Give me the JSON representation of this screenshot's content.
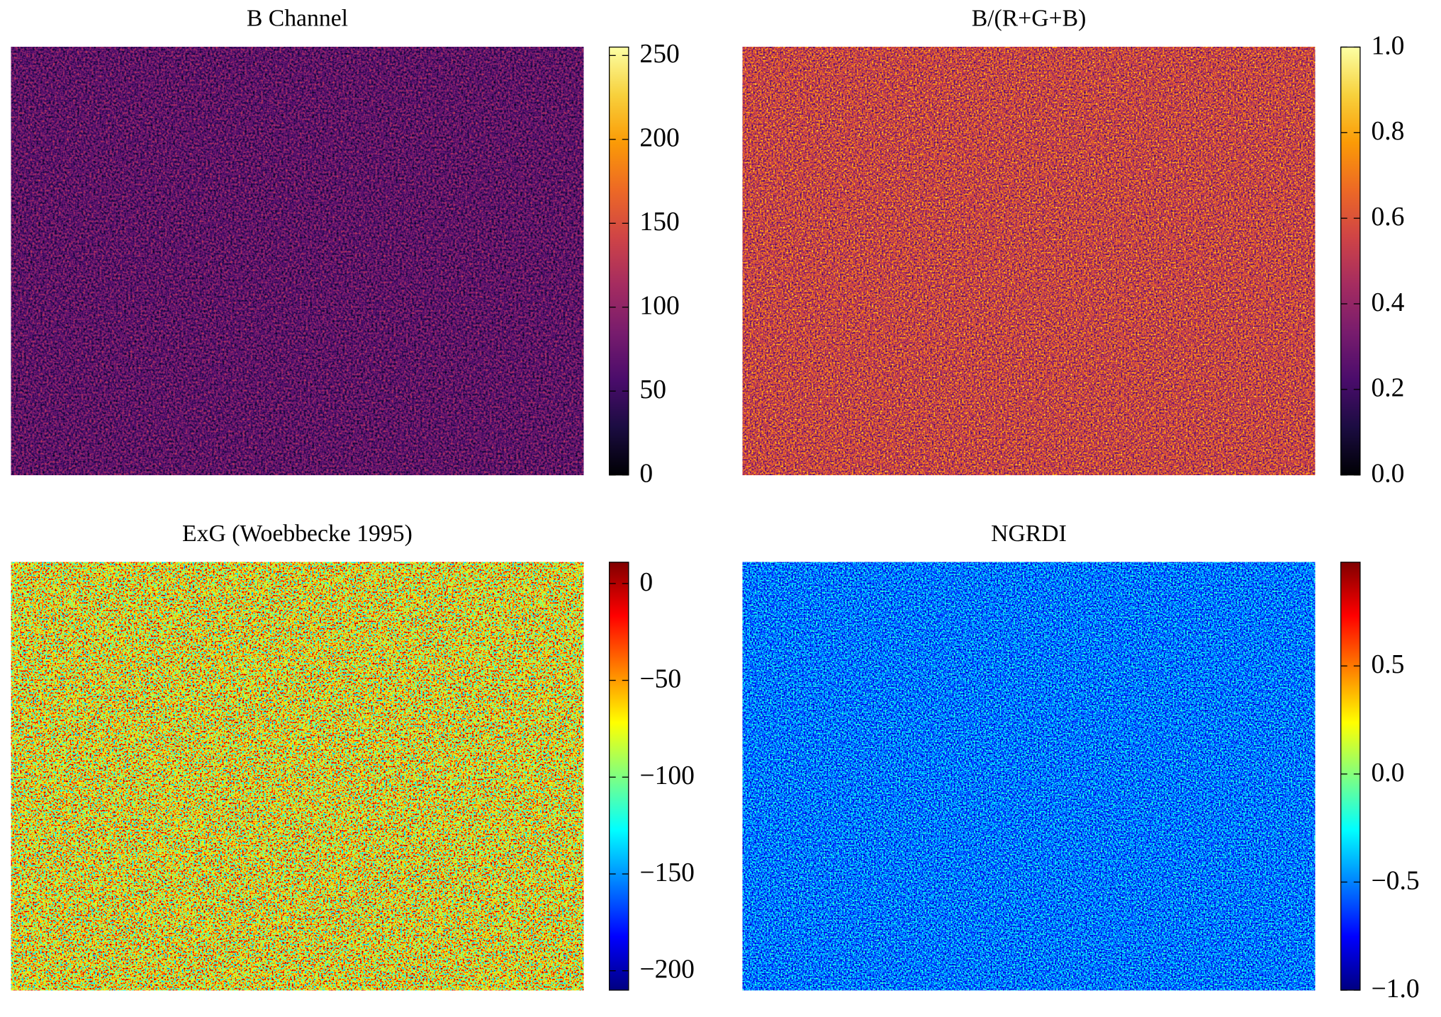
{
  "chart_data": [
    {
      "type": "image",
      "title": "B Channel",
      "colors": [
        "#000004",
        "#1b0c41",
        "#4a0c6b",
        "#781c6d",
        "#a52c60",
        "#cf4446",
        "#ed6925",
        "#fb9b06",
        "#f7d13d",
        "#fcffa4"
      ],
      "clim": [
        0,
        255
      ],
      "cticks": [
        0,
        50,
        100,
        150,
        200,
        250
      ]
    },
    {
      "type": "image",
      "title": "B/(R+G+B)",
      "colors": [
        "#000004",
        "#1b0c41",
        "#4a0c6b",
        "#781c6d",
        "#a52c60",
        "#cf4446",
        "#ed6925",
        "#fb9b06",
        "#f7d13d",
        "#fcffa4"
      ],
      "clim": [
        0,
        1
      ],
      "cticks": [
        {
          "value": 0,
          "label": "0.0"
        },
        {
          "value": 0.2,
          "label": "0.2"
        },
        {
          "value": 0.4,
          "label": "0.4"
        },
        {
          "value": 0.6,
          "label": "0.6"
        },
        {
          "value": 0.8,
          "label": "0.8"
        },
        {
          "value": 1,
          "label": "1.0"
        }
      ]
    },
    {
      "type": "image",
      "title": "ExG (Woebbecke 1995)",
      "colors": [
        "#000080",
        "#0000ff",
        "#0080ff",
        "#00ffff",
        "#80ff80",
        "#ffff00",
        "#ff8000",
        "#ff0000",
        "#800000"
      ],
      "clim": [
        -210,
        11
      ],
      "cticks": [
        {
          "value": -200,
          "label": "−200"
        },
        {
          "value": -150,
          "label": "−150"
        },
        {
          "value": -100,
          "label": "−100"
        },
        {
          "value": -50,
          "label": "−50"
        },
        0
      ]
    },
    {
      "type": "image",
      "title": "NGRDI",
      "colors": [
        "#000080",
        "#0000ff",
        "#0080ff",
        "#00ffff",
        "#80ff80",
        "#ffff00",
        "#ff8000",
        "#ff0000",
        "#800000"
      ],
      "clim": [
        -1,
        0.98
      ],
      "cticks": [
        {
          "value": -1,
          "label": "−1.0"
        },
        {
          "value": -0.5,
          "label": "−0.5"
        },
        {
          "value": 0,
          "label": "0.0"
        },
        {
          "value": 0.5,
          "label": "0.5"
        }
      ]
    }
  ]
}
